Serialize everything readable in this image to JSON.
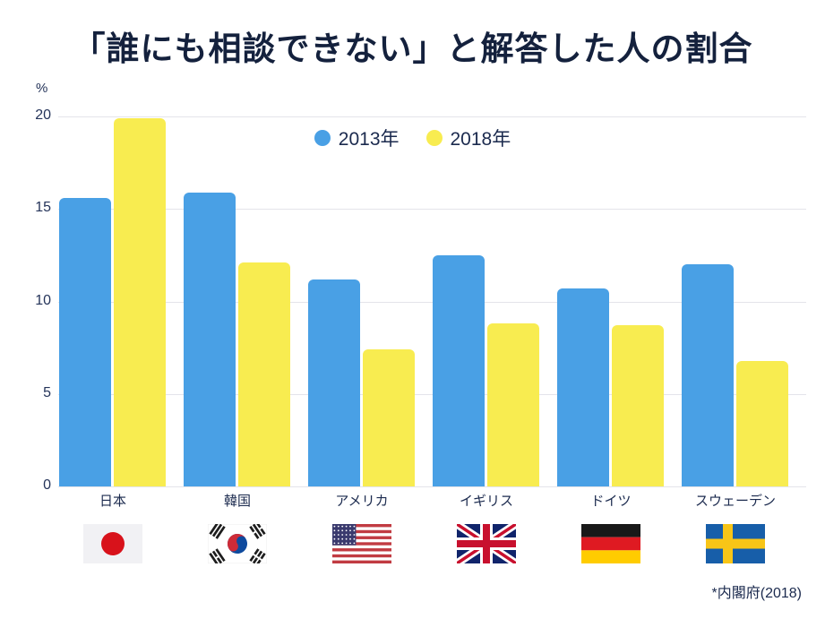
{
  "title": "「誰にも相談できない」と解答した人の割合",
  "source_note": "*内閣府(2018)",
  "y_axis": {
    "unit": "%",
    "ticks": [
      "20",
      "15",
      "10",
      "5",
      "0"
    ]
  },
  "colors": {
    "text_navy": "#1B2A4E",
    "series_2013_blue": "#49A0E5",
    "series_2018_yellow": "#F8EC50",
    "gridline": "#E4E4EA"
  },
  "chart_data": {
    "type": "bar",
    "title": "「誰にも相談できない」と解答した人の割合",
    "categories": [
      "日本",
      "韓国",
      "アメリカ",
      "イギリス",
      "ドイツ",
      "スウェーデン"
    ],
    "series": [
      {
        "name": "2013年",
        "color": "#49A0E5",
        "values": [
          15.6,
          15.9,
          11.2,
          12.5,
          10.7,
          12.0
        ]
      },
      {
        "name": "2018年",
        "color": "#F8EC50",
        "values": [
          19.9,
          12.1,
          7.4,
          8.8,
          8.7,
          6.8
        ]
      }
    ],
    "flags": [
      "japan",
      "south-korea",
      "usa",
      "uk",
      "germany",
      "sweden"
    ],
    "xlabel": "",
    "ylabel": "%",
    "ylim": [
      0,
      20
    ],
    "grid": true,
    "legend_position": "top-center"
  }
}
